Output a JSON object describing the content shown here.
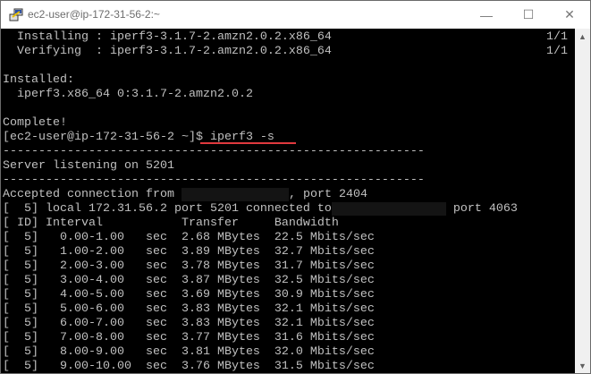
{
  "window": {
    "title": "ec2-user@ip-172-31-56-2:~",
    "minimize": "—",
    "maximize": "☐",
    "close": "✕"
  },
  "terminal": {
    "lines": [
      {
        "text": "  Installing : iperf3-3.1.7-2.amzn2.0.2.x86_64",
        "right": "1/1"
      },
      {
        "text": "  Verifying  : iperf3-3.1.7-2.amzn2.0.2.x86_64",
        "right": "1/1"
      },
      {
        "text": ""
      },
      {
        "text": "Installed:"
      },
      {
        "text": "  iperf3.x86_64 0:3.1.7-2.amzn2.0.2"
      },
      {
        "text": ""
      },
      {
        "text": "Complete!"
      },
      {
        "text": "[ec2-user@ip-172-31-56-2 ~]$ iperf3 -s"
      },
      {
        "text": "-----------------------------------------------------------"
      },
      {
        "text": "Server listening on 5201"
      },
      {
        "text": "-----------------------------------------------------------"
      },
      {
        "text": "Accepted connection from ",
        "redacted_chars": 15,
        "after": ", port 2404"
      },
      {
        "text": "[  5] local 172.31.56.2 port 5201 connected to",
        "redacted_chars": 16,
        "after": " port 4063"
      },
      {
        "text": "[ ID] Interval           Transfer     Bandwidth"
      },
      {
        "text": "[  5]   0.00-1.00   sec  2.68 MBytes  22.5 Mbits/sec"
      },
      {
        "text": "[  5]   1.00-2.00   sec  3.89 MBytes  32.7 Mbits/sec"
      },
      {
        "text": "[  5]   2.00-3.00   sec  3.78 MBytes  31.7 Mbits/sec"
      },
      {
        "text": "[  5]   3.00-4.00   sec  3.87 MBytes  32.5 Mbits/sec"
      },
      {
        "text": "[  5]   4.00-5.00   sec  3.69 MBytes  30.9 Mbits/sec"
      },
      {
        "text": "[  5]   5.00-6.00   sec  3.83 MBytes  32.1 Mbits/sec"
      },
      {
        "text": "[  5]   6.00-7.00   sec  3.83 MBytes  32.1 Mbits/sec"
      },
      {
        "text": "[  5]   7.00-8.00   sec  3.77 MBytes  31.6 Mbits/sec"
      },
      {
        "text": "[  5]   8.00-9.00   sec  3.81 MBytes  32.0 Mbits/sec"
      },
      {
        "text": "[  5]   9.00-10.00  sec  3.76 MBytes  31.5 Mbits/sec"
      }
    ],
    "highlight_color": "#e0393e"
  },
  "scrollbar": {
    "up": "▲",
    "down": "▼"
  }
}
